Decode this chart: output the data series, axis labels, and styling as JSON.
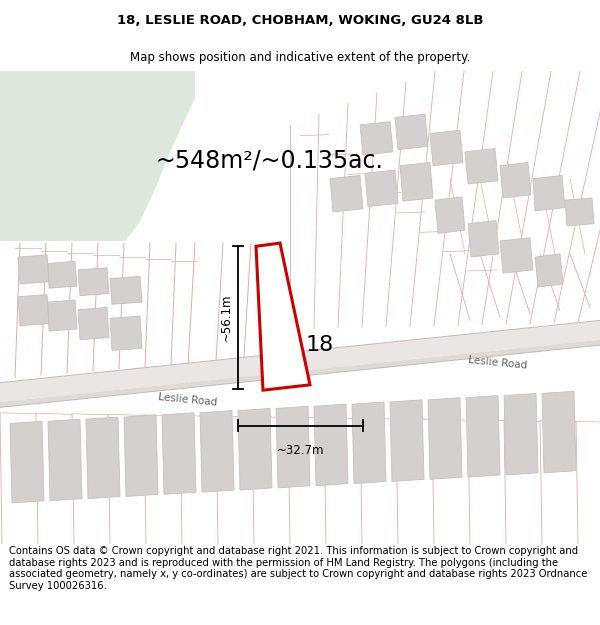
{
  "title_line1": "18, LESLIE ROAD, CHOBHAM, WOKING, GU24 8LB",
  "title_line2": "Map shows position and indicative extent of the property.",
  "area_label": "~548m²/~0.135ac.",
  "dim_height": "~56.1m",
  "dim_width": "~32.7m",
  "property_number": "18",
  "road_label_left": "Leslie Road",
  "road_label_right": "Leslie Road",
  "footer_text": "Contains OS data © Crown copyright and database right 2021. This information is subject to Crown copyright and database rights 2023 and is reproduced with the permission of HM Land Registry. The polygons (including the associated geometry, namely x, y co-ordinates) are subject to Crown copyright and database rights 2023 Ordnance Survey 100026316.",
  "bg_color": "#ffffff",
  "map_bg": "#f7f0f0",
  "green_patch_color": "#dce8dc",
  "road_fill": "#eae6e6",
  "road_center_fill": "#dddada",
  "plot_outline_color": "#cc0000",
  "building_fill": "#d4d0d0",
  "building_edge": "#c8c0c0",
  "line_color": "#e8a8a8",
  "road_edge_color": "#c8b8b8",
  "title_fontsize": 9.5,
  "subtitle_fontsize": 8.5,
  "area_fontsize": 17,
  "footer_fontsize": 7.2,
  "dim_fontsize": 8.5,
  "road_label_fontsize": 7.5,
  "number_fontsize": 16
}
